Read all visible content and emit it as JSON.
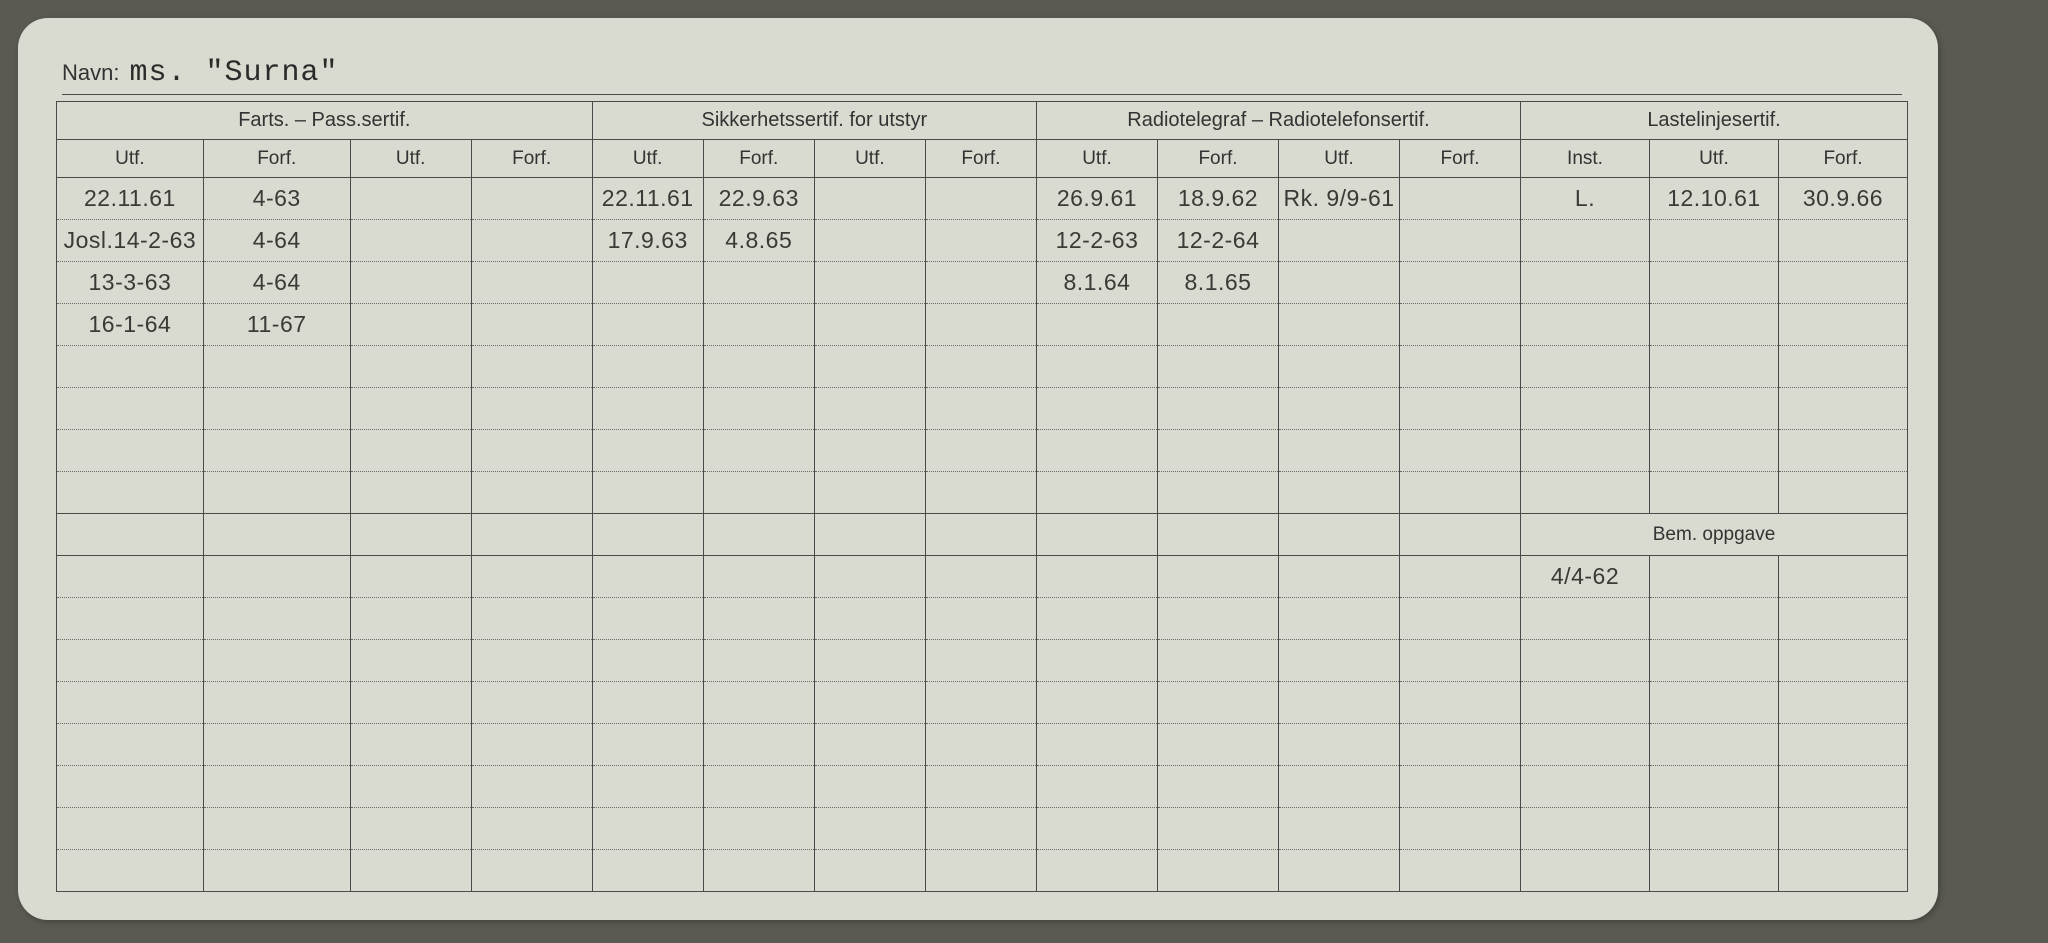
{
  "navn_label": "Navn:",
  "navn_value": "ms. \"Surna\"",
  "header_groups": {
    "farts": "Farts. – Pass.sertif.",
    "sikk": "Sikkerhetssertif. for utstyr",
    "radio": "Radiotelegraf – Radiotelefonsertif.",
    "laste": "Lastelinjesertif."
  },
  "sub_headers": {
    "utf": "Utf.",
    "forf": "Forf.",
    "inst": "Inst."
  },
  "bem_label": "Bem. oppgave",
  "row1": [
    "22.11.61",
    "4-63",
    "",
    "",
    "22.11.61",
    "22.9.63",
    "",
    "",
    "26.9.61",
    "18.9.62",
    "Rk. 9/9-61",
    "",
    "L.",
    "12.10.61",
    "30.9.66"
  ],
  "row2": [
    "Josl.14-2-63",
    "4-64",
    "",
    "",
    "17.9.63",
    "4.8.65",
    "",
    "",
    "12-2-63",
    "12-2-64",
    "",
    "",
    "",
    "",
    ""
  ],
  "row3": [
    "13-3-63",
    "4-64",
    "",
    "",
    "",
    "",
    "",
    "",
    "8.1.64",
    "8.1.65",
    "",
    "",
    "",
    "",
    ""
  ],
  "row4": [
    "16-1-64",
    "11-67",
    "",
    "",
    "",
    "",
    "",
    "",
    "",
    "",
    "",
    "",
    "",
    "",
    ""
  ],
  "bem_row": [
    "4/4-62",
    "",
    ""
  ]
}
